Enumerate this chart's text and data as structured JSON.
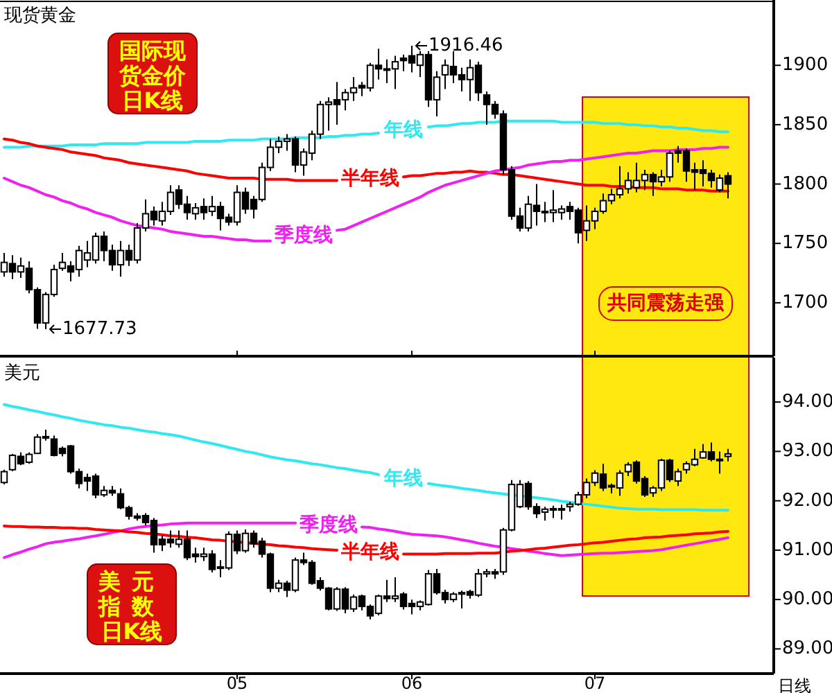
{
  "chart_data": [
    {
      "type": "candlestick",
      "title": "现货黄金",
      "tick_labels": "y",
      "categories": [
        null,
        null,
        null,
        null,
        null,
        null,
        null,
        null,
        null,
        null,
        null,
        null,
        null,
        null,
        null,
        null,
        null,
        null,
        null,
        null,
        null,
        null,
        null,
        null,
        null,
        null,
        null,
        null,
        "05",
        null,
        null,
        null,
        null,
        null,
        null,
        null,
        null,
        null,
        null,
        null,
        null,
        null,
        null,
        null,
        null,
        null,
        null,
        null,
        null,
        "06",
        null,
        null,
        null,
        null,
        null,
        null,
        null,
        null,
        null,
        null,
        null,
        null,
        null,
        null,
        null,
        null,
        null,
        null,
        null,
        null,
        null,
        "07",
        null,
        null,
        null,
        null,
        null,
        null,
        null,
        null,
        null,
        null,
        null,
        null,
        null,
        null,
        null,
        null,
        null,
        null,
        null,
        null,
        null
      ],
      "ohlc": [
        [
          1726,
          1742,
          1722,
          1734
        ],
        [
          1733,
          1740,
          1720,
          1726
        ],
        [
          1726,
          1738,
          1721,
          1731
        ],
        [
          1729,
          1735,
          1708,
          1711
        ],
        [
          1711,
          1713,
          1678,
          1683
        ],
        [
          1683,
          1709,
          1677.73,
          1707
        ],
        [
          1707,
          1732,
          1705,
          1728
        ],
        [
          1729,
          1742,
          1727,
          1734
        ],
        [
          1731,
          1735,
          1718,
          1726
        ],
        [
          1728,
          1748,
          1722,
          1744
        ],
        [
          1736,
          1752,
          1730,
          1742
        ],
        [
          1736,
          1759,
          1733,
          1756
        ],
        [
          1756,
          1760,
          1735,
          1744
        ],
        [
          1744,
          1749,
          1727,
          1732
        ],
        [
          1732,
          1752,
          1722,
          1744
        ],
        [
          1744,
          1749,
          1731,
          1736
        ],
        [
          1736,
          1767,
          1733,
          1763
        ],
        [
          1763,
          1787,
          1760,
          1775
        ],
        [
          1777,
          1781,
          1765,
          1770
        ],
        [
          1769,
          1785,
          1765,
          1777
        ],
        [
          1777,
          1799,
          1774,
          1793
        ],
        [
          1795,
          1799,
          1779,
          1783
        ],
        [
          1783,
          1790,
          1770,
          1776
        ],
        [
          1775,
          1784,
          1770,
          1780
        ],
        [
          1781,
          1788,
          1770,
          1776
        ],
        [
          1777,
          1790,
          1773,
          1781
        ],
        [
          1781,
          1785,
          1761,
          1771
        ],
        [
          1772,
          1775,
          1765,
          1768
        ],
        [
          1768,
          1799,
          1765,
          1793
        ],
        [
          1793,
          1797,
          1775,
          1779
        ],
        [
          1787,
          1790,
          1771,
          1779
        ],
        [
          1787,
          1818,
          1785,
          1814
        ],
        [
          1814,
          1838,
          1811,
          1831
        ],
        [
          1831,
          1840,
          1826,
          1836
        ],
        [
          1836,
          1842,
          1828,
          1838
        ],
        [
          1838,
          1840,
          1810,
          1816
        ],
        [
          1816,
          1830,
          1807,
          1827
        ],
        [
          1826,
          1845,
          1820,
          1842
        ],
        [
          1842,
          1870,
          1838,
          1867
        ],
        [
          1867,
          1873,
          1845,
          1869
        ],
        [
          1871,
          1886,
          1850,
          1867
        ],
        [
          1871,
          1880,
          1862,
          1877
        ],
        [
          1877,
          1890,
          1870,
          1881
        ],
        [
          1883,
          1886,
          1874,
          1881
        ],
        [
          1881,
          1902,
          1878,
          1900
        ],
        [
          1900,
          1914,
          1888,
          1897
        ],
        [
          1897,
          1905,
          1885,
          1896
        ],
        [
          1897,
          1908,
          1880,
          1903
        ],
        [
          1906,
          1909,
          1895,
          1904
        ],
        [
          1908,
          1916.46,
          1894,
          1902
        ],
        [
          1900,
          1912,
          1890,
          1909
        ],
        [
          1909,
          1912,
          1865,
          1871
        ],
        [
          1871,
          1895,
          1857,
          1890
        ],
        [
          1892,
          1905,
          1880,
          1900
        ],
        [
          1899,
          1912,
          1885,
          1892
        ],
        [
          1892,
          1898,
          1878,
          1888
        ],
        [
          1888,
          1905,
          1870,
          1898
        ],
        [
          1900,
          1903,
          1870,
          1877
        ],
        [
          1875,
          1878,
          1850,
          1867
        ],
        [
          1867,
          1870,
          1855,
          1859
        ],
        [
          1859,
          1862,
          1808,
          1812
        ],
        [
          1812,
          1815,
          1770,
          1773
        ],
        [
          1773,
          1780,
          1760,
          1763
        ],
        [
          1763,
          1790,
          1760,
          1783
        ],
        [
          1782,
          1800,
          1765,
          1777
        ],
        [
          1777,
          1785,
          1768,
          1776
        ],
        [
          1776,
          1795,
          1768,
          1778
        ],
        [
          1776,
          1782,
          1770,
          1779
        ],
        [
          1781,
          1785,
          1770,
          1777
        ],
        [
          1778,
          1780,
          1750,
          1759
        ],
        [
          1761,
          1782,
          1752,
          1769
        ],
        [
          1769,
          1780,
          1762,
          1777
        ],
        [
          1777,
          1792,
          1775,
          1786
        ],
        [
          1786,
          1796,
          1783,
          1791
        ],
        [
          1791,
          1815,
          1788,
          1796
        ],
        [
          1796,
          1810,
          1792,
          1803
        ],
        [
          1797,
          1818,
          1793,
          1803
        ],
        [
          1803,
          1812,
          1795,
          1808
        ],
        [
          1808,
          1810,
          1790,
          1802
        ],
        [
          1802,
          1812,
          1798,
          1806
        ],
        [
          1806,
          1828,
          1802,
          1826
        ],
        [
          1828,
          1832,
          1818,
          1826
        ],
        [
          1828,
          1830,
          1802,
          1811
        ],
        [
          1812,
          1818,
          1795,
          1810
        ],
        [
          1812,
          1820,
          1798,
          1809
        ],
        [
          1809,
          1812,
          1797,
          1803
        ],
        [
          1795,
          1808,
          1793,
          1805
        ],
        [
          1807,
          1810,
          1788,
          1800
        ],
        null,
        null,
        null,
        null,
        null
      ],
      "series": [
        {
          "name": "年线",
          "type": "line",
          "color": "#30e8f0",
          "values": [
            1831,
            1831,
            1831,
            1832,
            1832,
            1832,
            1832,
            1832,
            1833,
            1833,
            1833,
            1833,
            1834,
            1834,
            1834,
            1834,
            1834,
            1835,
            1835,
            1835,
            1835,
            1835,
            1835,
            1836,
            1836,
            1836,
            1836,
            1837,
            1837,
            1837,
            1837,
            1838,
            1838,
            1838,
            1838,
            1839,
            1839,
            1839,
            1839,
            1840,
            1840,
            1841,
            1841,
            1842,
            1842,
            1843,
            null,
            null,
            null,
            null,
            null,
            1848,
            1849,
            1849,
            1850,
            1851,
            1851,
            1852,
            1852,
            1852,
            1853,
            1853,
            1853,
            1853,
            1853,
            1853,
            1853,
            1852,
            1852,
            1852,
            1852,
            1852,
            1851,
            1851,
            1851,
            1850,
            1850,
            1849,
            1849,
            1848,
            1848,
            1847,
            1847,
            1846,
            1845,
            1845,
            1844,
            1844,
            null,
            null,
            null,
            null,
            null
          ]
        },
        {
          "name": "半年线",
          "type": "line",
          "color": "#ff0000",
          "values": [
            1838,
            1837,
            1835,
            1834,
            1832,
            1831,
            1830,
            1829,
            1827,
            1826,
            1825,
            1824,
            1822,
            1821,
            1820,
            1818,
            1817,
            1816,
            1815,
            1814,
            1813,
            1812,
            1811,
            1809,
            1808,
            1807,
            1806,
            1805,
            1805,
            1805,
            1805,
            1804,
            1804,
            1804,
            1804,
            1803,
            1803,
            1803,
            1803,
            1803,
            1803,
            null,
            null,
            null,
            null,
            null,
            null,
            null,
            1806,
            1807,
            1807,
            1808,
            1809,
            1809,
            1810,
            1810,
            1811,
            1810,
            1810,
            1809,
            1808,
            1808,
            1807,
            1806,
            1805,
            1804,
            1803,
            1802,
            1801,
            1800,
            1799,
            1799,
            1799,
            1798,
            1798,
            1798,
            1797,
            1797,
            1797,
            1796,
            1796,
            1796,
            1795,
            1795,
            1795,
            1794,
            1794,
            1794,
            null,
            null,
            null,
            null,
            null
          ]
        },
        {
          "name": "季度线",
          "type": "line",
          "color": "#f020f0",
          "values": [
            1805,
            1802,
            1799,
            1797,
            1794,
            1791,
            1789,
            1786,
            1784,
            1781,
            1779,
            1776,
            1774,
            1772,
            1769,
            1767,
            1765,
            1764,
            1763,
            1762,
            1760,
            1759,
            1758,
            1757,
            1756,
            1756,
            1755,
            1754,
            1753,
            1753,
            1752,
            1752,
            1752,
            null,
            null,
            null,
            null,
            null,
            null,
            null,
            1761,
            1762,
            1765,
            1768,
            1771,
            1774,
            1777,
            1780,
            1783,
            1786,
            1789,
            1793,
            1796,
            1799,
            1801,
            1803,
            1805,
            1807,
            1809,
            1811,
            1812,
            1813,
            1814,
            1816,
            1817,
            1818,
            1819,
            1819,
            1820,
            1820,
            1821,
            1822,
            1823,
            1824,
            1825,
            1826,
            1826,
            1827,
            1828,
            1828,
            1828,
            1829,
            1829,
            1829,
            1830,
            1830,
            1831,
            1831,
            null,
            null,
            null,
            null,
            null
          ]
        }
      ],
      "ylim": [
        1655,
        1955
      ],
      "yticks": [
        1700,
        1750,
        1800,
        1850,
        1900
      ],
      "annotations": [
        "国际现货金价日K线",
        "1916.46",
        "1677.73",
        "共同震荡走强"
      ]
    },
    {
      "type": "candlestick",
      "title": "美元",
      "xlabel": "日线",
      "categories": [
        null,
        null,
        null,
        null,
        null,
        null,
        null,
        null,
        null,
        null,
        null,
        null,
        null,
        null,
        null,
        null,
        null,
        null,
        null,
        null,
        null,
        null,
        null,
        null,
        null,
        null,
        null,
        null,
        "05",
        null,
        null,
        null,
        null,
        null,
        null,
        null,
        null,
        null,
        null,
        null,
        null,
        null,
        null,
        null,
        null,
        null,
        null,
        null,
        null,
        "06",
        null,
        null,
        null,
        null,
        null,
        null,
        null,
        null,
        null,
        null,
        null,
        null,
        null,
        null,
        null,
        null,
        null,
        null,
        null,
        null,
        null,
        "07",
        null,
        null,
        null,
        null,
        null,
        null,
        null,
        null,
        null,
        null,
        null,
        null,
        null,
        null,
        null,
        null,
        null,
        null,
        null,
        null,
        null
      ],
      "ohlc": [
        [
          92.37,
          92.63,
          92.33,
          92.59
        ],
        [
          92.63,
          92.95,
          92.6,
          92.92
        ],
        [
          92.9,
          92.98,
          92.72,
          92.75
        ],
        [
          92.78,
          92.98,
          92.75,
          92.94
        ],
        [
          92.96,
          93.35,
          92.95,
          93.29
        ],
        [
          93.3,
          93.44,
          93.22,
          93.27
        ],
        [
          93.25,
          93.32,
          92.9,
          92.92
        ],
        [
          93.06,
          93.1,
          92.9,
          92.96
        ],
        [
          93.11,
          93.13,
          92.55,
          92.59
        ],
        [
          92.59,
          92.65,
          92.25,
          92.35
        ],
        [
          92.47,
          92.55,
          92.2,
          92.4
        ],
        [
          92.5,
          92.55,
          92.05,
          92.12
        ],
        [
          92.12,
          92.3,
          92.08,
          92.21
        ],
        [
          92.21,
          92.3,
          92.1,
          92.16
        ],
        [
          92.14,
          92.25,
          91.83,
          91.86
        ],
        [
          91.86,
          91.9,
          91.62,
          91.69
        ],
        [
          91.69,
          91.75,
          91.6,
          91.65
        ],
        [
          91.7,
          91.75,
          91.5,
          91.56
        ],
        [
          91.6,
          91.65,
          90.95,
          91.11
        ],
        [
          91.22,
          91.3,
          90.98,
          91.11
        ],
        [
          91.22,
          91.4,
          91.05,
          91.15
        ],
        [
          91.12,
          91.4,
          91.05,
          91.22
        ],
        [
          91.22,
          91.4,
          90.8,
          90.85
        ],
        [
          90.92,
          91.05,
          90.75,
          90.87
        ],
        [
          90.87,
          91.05,
          90.78,
          90.92
        ],
        [
          90.92,
          91.0,
          90.55,
          90.61
        ],
        [
          90.66,
          90.8,
          90.45,
          90.64
        ],
        [
          90.64,
          91.38,
          90.6,
          91.32
        ],
        [
          91.32,
          91.4,
          90.92,
          90.99
        ],
        [
          90.99,
          91.42,
          90.95,
          91.34
        ],
        [
          91.34,
          91.4,
          91.05,
          91.13
        ],
        [
          91.18,
          91.25,
          90.85,
          90.92
        ],
        [
          90.92,
          90.95,
          90.15,
          90.23
        ],
        [
          90.23,
          90.4,
          90.15,
          90.33
        ],
        [
          90.33,
          90.38,
          90.05,
          90.19
        ],
        [
          90.19,
          90.85,
          90.15,
          90.8
        ],
        [
          90.8,
          90.95,
          90.7,
          90.75
        ],
        [
          90.75,
          90.8,
          90.3,
          90.33
        ],
        [
          90.38,
          90.45,
          90.18,
          90.23
        ],
        [
          90.23,
          90.25,
          89.78,
          89.81
        ],
        [
          89.81,
          90.25,
          89.77,
          90.21
        ],
        [
          90.21,
          90.25,
          89.72,
          89.81
        ],
        [
          89.81,
          90.1,
          89.75,
          90.05
        ],
        [
          90.07,
          90.1,
          89.78,
          89.86
        ],
        [
          89.86,
          89.9,
          89.6,
          89.67
        ],
        [
          89.72,
          90.1,
          89.68,
          90.07
        ],
        [
          90.07,
          90.4,
          89.95,
          90.02
        ],
        [
          90.02,
          90.45,
          89.95,
          90.07
        ],
        [
          90.11,
          90.15,
          89.8,
          89.86
        ],
        [
          89.92,
          90.0,
          89.7,
          89.86
        ],
        [
          89.86,
          89.98,
          89.78,
          89.95
        ],
        [
          89.9,
          90.6,
          89.88,
          90.52
        ],
        [
          90.52,
          90.62,
          90.1,
          90.14
        ],
        [
          90.14,
          90.2,
          89.92,
          90.0
        ],
        [
          90.0,
          90.15,
          89.95,
          90.11
        ],
        [
          90.11,
          90.18,
          89.82,
          90.14
        ],
        [
          90.16,
          90.2,
          90.02,
          90.09
        ],
        [
          90.09,
          90.62,
          90.05,
          90.52
        ],
        [
          90.52,
          90.62,
          90.45,
          90.56
        ],
        [
          90.56,
          90.62,
          90.42,
          90.52
        ],
        [
          90.56,
          91.45,
          90.5,
          91.41
        ],
        [
          91.41,
          92.42,
          91.38,
          92.33
        ],
        [
          91.88,
          92.42,
          91.85,
          92.33
        ],
        [
          92.35,
          92.4,
          91.82,
          91.88
        ],
        [
          91.88,
          91.95,
          91.65,
          91.74
        ],
        [
          91.77,
          91.88,
          91.6,
          91.83
        ],
        [
          91.83,
          91.9,
          91.65,
          91.84
        ],
        [
          91.84,
          91.92,
          91.62,
          91.83
        ],
        [
          91.88,
          91.98,
          91.78,
          91.93
        ],
        [
          91.93,
          92.18,
          91.9,
          92.12
        ],
        [
          92.12,
          92.45,
          92.05,
          92.37
        ],
        [
          92.37,
          92.62,
          92.3,
          92.56
        ],
        [
          92.54,
          92.75,
          92.2,
          92.26
        ],
        [
          92.31,
          92.35,
          92.15,
          92.28
        ],
        [
          92.26,
          92.62,
          92.1,
          92.56
        ],
        [
          92.59,
          92.78,
          92.5,
          92.73
        ],
        [
          92.78,
          92.82,
          92.35,
          92.4
        ],
        [
          92.45,
          92.5,
          92.08,
          92.12
        ],
        [
          92.16,
          92.3,
          92.08,
          92.26
        ],
        [
          92.26,
          92.85,
          92.2,
          92.82
        ],
        [
          92.82,
          92.85,
          92.38,
          92.43
        ],
        [
          92.4,
          92.65,
          92.3,
          92.59
        ],
        [
          92.63,
          92.8,
          92.55,
          92.75
        ],
        [
          92.73,
          93.05,
          92.7,
          92.84
        ],
        [
          92.87,
          93.15,
          92.85,
          92.99
        ],
        [
          92.99,
          93.18,
          92.8,
          92.84
        ],
        [
          92.84,
          93.0,
          92.55,
          92.82
        ],
        [
          92.9,
          93.05,
          92.8,
          92.95
        ],
        null,
        null,
        null,
        null,
        null
      ],
      "series": [
        {
          "name": "年线",
          "type": "line",
          "color": "#30e8f0",
          "values": [
            93.95,
            93.91,
            93.88,
            93.84,
            93.81,
            93.77,
            93.74,
            93.7,
            93.67,
            93.63,
            93.6,
            93.57,
            93.54,
            93.52,
            93.49,
            93.47,
            93.44,
            93.41,
            93.39,
            93.36,
            93.34,
            93.31,
            93.27,
            93.23,
            93.19,
            93.16,
            93.12,
            93.08,
            93.04,
            93.0,
            92.97,
            92.93,
            92.89,
            92.86,
            92.83,
            92.81,
            92.78,
            92.75,
            92.73,
            92.7,
            92.67,
            92.65,
            92.62,
            92.59,
            92.57,
            92.53,
            null,
            null,
            null,
            null,
            null,
            92.35,
            92.32,
            92.3,
            92.28,
            92.25,
            92.23,
            92.21,
            92.18,
            92.16,
            92.14,
            92.12,
            92.1,
            92.08,
            92.06,
            92.04,
            92.02,
            91.99,
            91.97,
            91.95,
            91.93,
            91.91,
            91.89,
            91.87,
            91.85,
            91.84,
            91.83,
            91.83,
            91.83,
            91.82,
            91.82,
            91.82,
            91.82,
            91.82,
            91.81,
            91.81,
            91.81,
            91.81,
            null,
            null,
            null,
            null,
            null
          ]
        },
        {
          "name": "季度线",
          "type": "line",
          "color": "#f020f0",
          "values": [
            90.85,
            90.91,
            90.96,
            91.02,
            91.07,
            91.13,
            91.16,
            91.18,
            91.21,
            91.23,
            91.26,
            91.29,
            91.32,
            91.36,
            91.39,
            91.43,
            91.46,
            91.48,
            91.5,
            91.51,
            91.53,
            91.54,
            91.55,
            91.55,
            91.55,
            91.55,
            91.55,
            91.55,
            91.55,
            91.55,
            91.55,
            91.55,
            91.55,
            91.55,
            91.55,
            91.55,
            null,
            null,
            null,
            null,
            null,
            null,
            null,
            91.47,
            91.46,
            91.43,
            91.41,
            91.38,
            91.35,
            91.32,
            91.31,
            91.3,
            91.29,
            91.27,
            91.24,
            91.21,
            91.18,
            91.14,
            91.11,
            91.08,
            91.06,
            91.03,
            91.01,
            90.98,
            90.96,
            90.93,
            90.91,
            90.89,
            90.9,
            90.91,
            90.92,
            90.93,
            90.94,
            90.94,
            90.95,
            90.96,
            90.97,
            90.98,
            90.99,
            91.01,
            91.04,
            91.07,
            91.1,
            91.13,
            91.16,
            91.19,
            91.22,
            91.25,
            null,
            null,
            null,
            null,
            null
          ]
        },
        {
          "name": "半年线",
          "type": "line",
          "color": "#ff0000",
          "values": [
            91.49,
            91.48,
            91.48,
            91.47,
            91.47,
            91.46,
            91.46,
            91.45,
            91.45,
            91.44,
            91.44,
            91.42,
            91.41,
            91.4,
            91.39,
            91.37,
            91.36,
            91.34,
            91.33,
            91.31,
            91.29,
            91.28,
            91.26,
            91.25,
            91.23,
            91.21,
            91.2,
            91.18,
            91.17,
            91.15,
            91.14,
            91.12,
            91.11,
            91.09,
            91.08,
            91.06,
            91.05,
            91.03,
            91.02,
            91.01,
            91.0,
            null,
            null,
            null,
            null,
            null,
            null,
            null,
            90.92,
            90.92,
            90.92,
            90.92,
            90.92,
            90.93,
            90.93,
            90.93,
            90.93,
            90.94,
            90.94,
            90.94,
            90.96,
            90.98,
            90.99,
            91.01,
            91.03,
            91.04,
            91.06,
            91.08,
            91.1,
            91.11,
            91.13,
            91.15,
            91.16,
            91.18,
            91.2,
            91.22,
            91.23,
            91.25,
            91.26,
            91.27,
            91.29,
            91.3,
            91.31,
            91.33,
            91.34,
            91.35,
            91.37,
            91.38,
            null,
            null,
            null,
            null,
            null
          ]
        }
      ],
      "ylim": [
        88.5,
        94.9
      ],
      "yticks": [
        {
          "value": 89,
          "label": "89.00"
        },
        {
          "value": 90,
          "label": "90.00"
        },
        {
          "value": 91,
          "label": "91.00"
        },
        {
          "value": 92,
          "label": "92.00"
        },
        {
          "value": 93,
          "label": "93.00"
        },
        {
          "value": 94,
          "label": "94.00"
        }
      ],
      "annotations": [
        "美元指数日K线"
      ]
    }
  ]
}
